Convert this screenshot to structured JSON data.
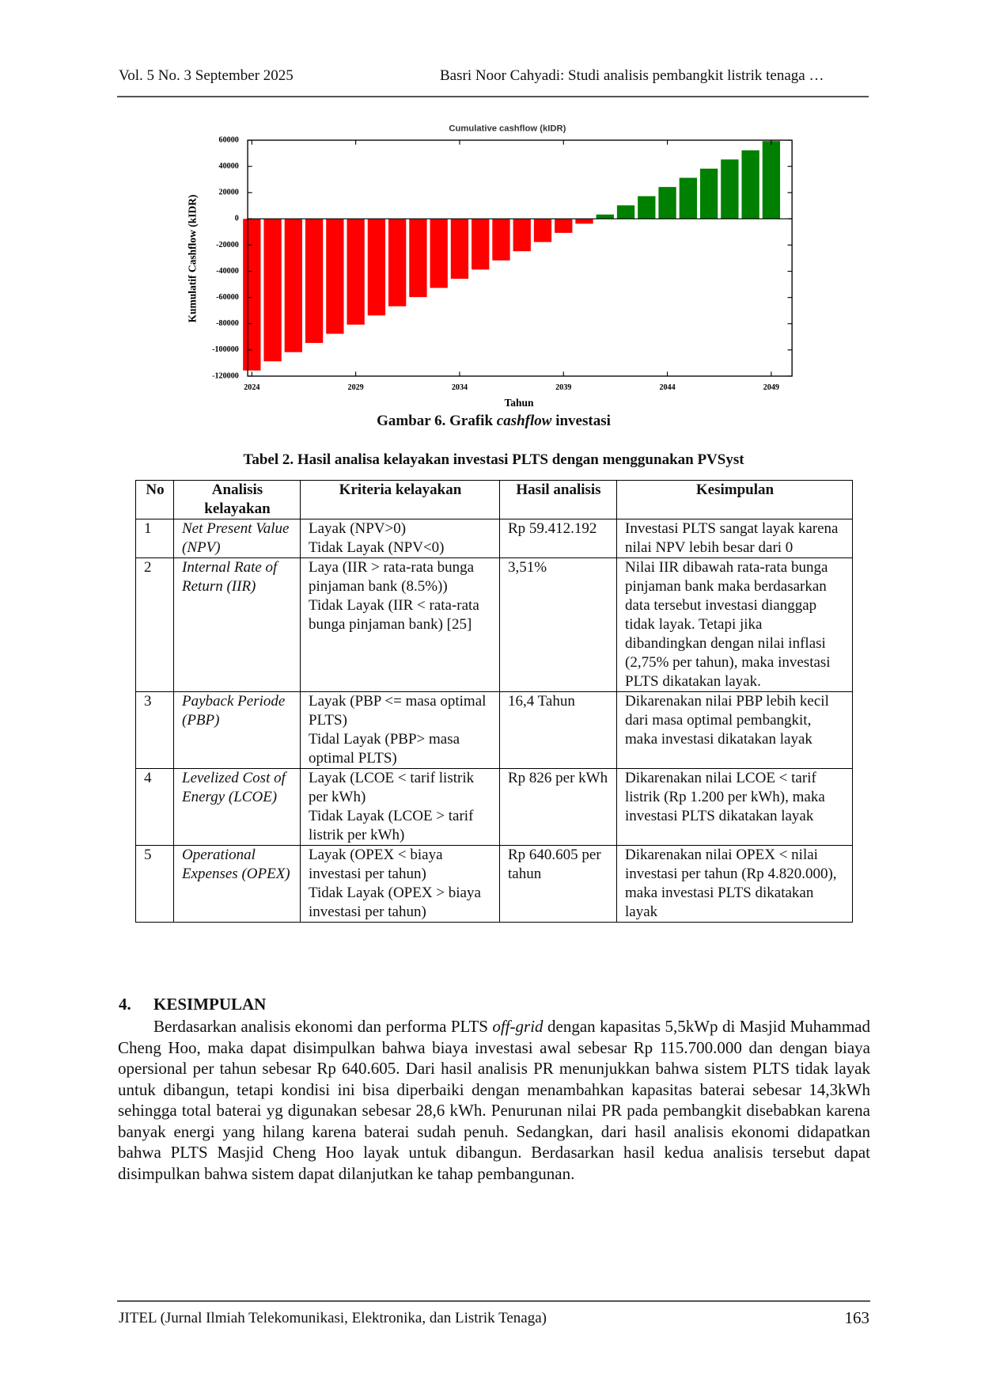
{
  "header": {
    "left": "Vol. 5 No. 3 September 2025",
    "right": "Basri Noor Cahyadi: Studi analisis pembangkit listrik tenaga …"
  },
  "chart_data": {
    "type": "bar",
    "title": "Cumulative cashflow (kIDR)",
    "xlabel": "Tahun",
    "ylabel": "Kumulatif Cashflow (kIDR)",
    "x": [
      2024,
      2025,
      2026,
      2027,
      2028,
      2029,
      2030,
      2031,
      2032,
      2033,
      2034,
      2035,
      2036,
      2037,
      2038,
      2039,
      2040,
      2041,
      2042,
      2043,
      2044,
      2045,
      2046,
      2047,
      2048,
      2049
    ],
    "values": [
      -115700,
      -108700,
      -101700,
      -94700,
      -87700,
      -80700,
      -73700,
      -66700,
      -59700,
      -52700,
      -45700,
      -38700,
      -31700,
      -24700,
      -17700,
      -10700,
      -3700,
      3300,
      10300,
      17300,
      24300,
      31300,
      38300,
      45300,
      52300,
      59300
    ],
    "negative_color": "#ff0000",
    "positive_color": "#008000",
    "xlim": [
      2023.8,
      2050
    ],
    "xticks": [
      2024,
      2029,
      2034,
      2039,
      2044,
      2049
    ],
    "ylim": [
      -120000,
      60000
    ],
    "yticks": [
      -120000,
      -100000,
      -80000,
      -60000,
      -40000,
      -20000,
      0,
      20000,
      40000,
      60000
    ],
    "grid": false
  },
  "figure_caption": {
    "prefix": "Gambar 6. Grafik",
    "em": "cashflow",
    "suffix": "investasi"
  },
  "table": {
    "caption": "Tabel 2. Hasil analisa kelayakan investasi PLTS dengan menggunakan PVSyst",
    "header": [
      "No",
      "Analisis kelayakan",
      "Kriteria kelayakan",
      "Hasil analisis",
      "Kesimpulan"
    ],
    "rows": [
      [
        "1",
        "Net Present Value (NPV)",
        [
          "Layak (NPV>0)",
          "Tidak Layak (NPV<0)"
        ],
        "Rp 59.412.192",
        "Investasi PLTS sangat layak karena nilai NPV lebih besar dari 0"
      ],
      [
        "2",
        "Internal Rate of Return (IIR)",
        [
          "Laya (IIR > rata-rata bunga pinjaman bank (8.5%))",
          "Tidak Layak (IIR < rata-rata bunga pinjaman bank) [25]"
        ],
        "3,51%",
        "Nilai IIR dibawah rata-rata bunga pinjaman bank maka berdasarkan data tersebut investasi dianggap tidak layak. Tetapi jika dibandingkan dengan nilai inflasi (2,75% per tahun), maka investasi PLTS dikatakan layak."
      ],
      [
        "3",
        "Payback Periode (PBP)",
        [
          "Layak (PBP <= masa optimal PLTS)",
          "Tidal Layak (PBP> masa optimal PLTS)"
        ],
        "16,4 Tahun",
        "Dikarenakan nilai PBP lebih kecil dari masa optimal pembangkit, maka investasi dikatakan layak"
      ],
      [
        "4",
        "Levelized Cost of Energy (LCOE)",
        [
          "Layak (LCOE < tarif listrik per kWh)",
          "Tidak Layak (LCOE > tarif listrik per kWh)"
        ],
        "Rp 826 per kWh",
        "Dikarenakan nilai LCOE < tarif listrik (Rp 1.200 per kWh), maka investasi PLTS dikatakan layak"
      ],
      [
        "5",
        "Operational Expenses (OPEX)",
        [
          "Layak (OPEX < biaya investasi per tahun)",
          "Tidak Layak (OPEX > biaya investasi per tahun)"
        ],
        "Rp 640.605 per tahun",
        "Dikarenakan nilai OPEX < nilai investasi per tahun (Rp 4.820.000), maka investasi PLTS dikatakan layak"
      ]
    ]
  },
  "section": {
    "number": "4.",
    "title": "KESIMPULAN",
    "paragraph": {
      "before": "Berdasarkan analisis ekonomi dan performa PLTS",
      "em": "off-grid",
      "after": "dengan kapasitas 5,5kWp di Masjid Muhammad Cheng Hoo, maka dapat disimpulkan bahwa biaya investasi awal sebesar Rp 115.700.000 dan dengan biaya opersional per tahun sebesar Rp 640.605. Dari hasil analisis PR menunjukkan bahwa sistem PLTS tidak layak untuk dibangun, tetapi kondisi ini bisa diperbaiki dengan menambahkan kapasitas baterai sebesar 14,3kWh sehingga total baterai yg digunakan sebesar 28,6 kWh. Penurunan nilai PR pada pembangkit disebabkan karena banyak energi yang hilang karena baterai sudah penuh. Sedangkan, dari hasil analisis ekonomi didapatkan bahwa PLTS Masjid Cheng Hoo layak untuk dibangun. Berdasarkan hasil kedua analisis tersebut dapat disimpulkan bahwa sistem dapat dilanjutkan ke tahap pembangunan."
    }
  },
  "footer": {
    "left": "JITEL (Jurnal Ilmiah Telekomunikasi, Elektronika, dan Listrik Tenaga)",
    "page": "163"
  }
}
